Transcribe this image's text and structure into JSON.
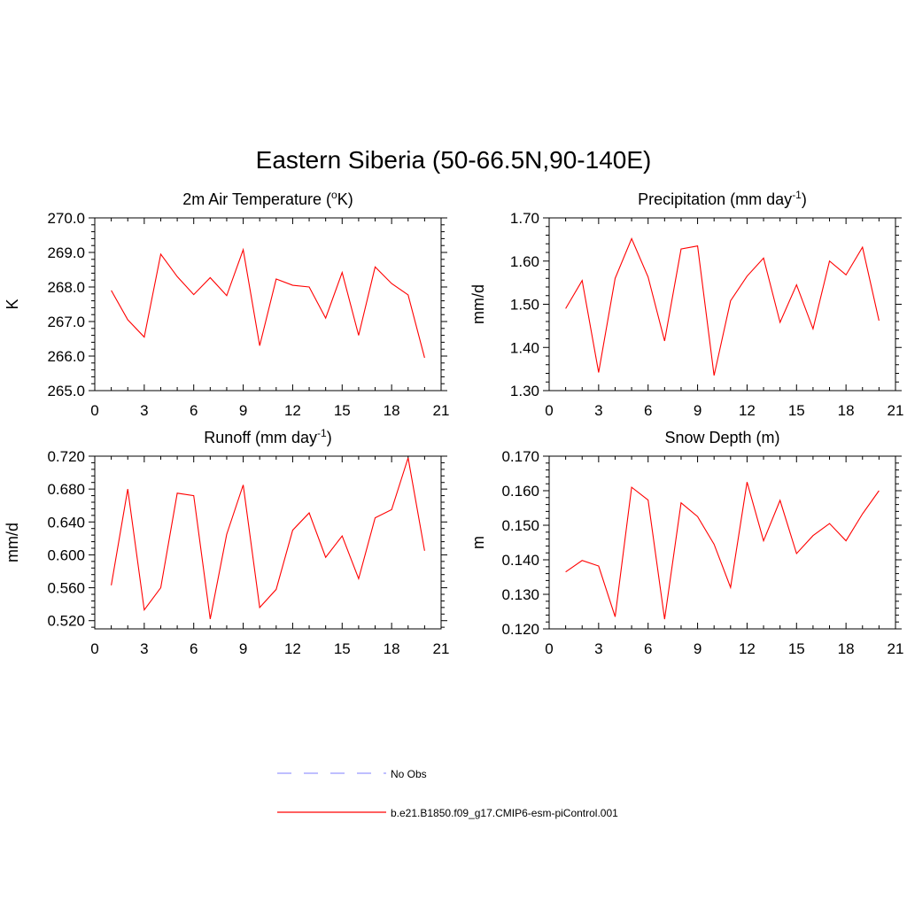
{
  "title": "Eastern Siberia (50-66.5N,90-140E)",
  "colors": {
    "model": "#ff0000",
    "obs": "#9999ff",
    "axis": "#000000"
  },
  "legend": {
    "entries": [
      {
        "label": "No Obs",
        "style": "dashed",
        "color": "#9999ff"
      },
      {
        "label": "b.e21.B1850.f09_g17.CMIP6-esm-piControl.001",
        "style": "solid",
        "color": "#ff0000"
      }
    ]
  },
  "chart_data": [
    {
      "type": "line",
      "title_main": "2m Air Temperature (",
      "title_sup": "o",
      "title_tail": "K)",
      "ylabel": "K",
      "xlim": [
        0,
        21
      ],
      "ylim": [
        265.0,
        270.0
      ],
      "xticks": [
        "0",
        "3",
        "6",
        "9",
        "12",
        "15",
        "18",
        "21"
      ],
      "yticks": [
        "265.0",
        "266.0",
        "267.0",
        "268.0",
        "269.0",
        "270.0"
      ],
      "x": [
        1,
        2,
        3,
        4,
        5,
        6,
        7,
        8,
        9,
        10,
        11,
        12,
        13,
        14,
        15,
        16,
        17,
        18,
        19,
        20
      ],
      "series": [
        {
          "values": [
            267.9,
            267.05,
            266.55,
            268.95,
            268.3,
            267.78,
            268.27,
            267.75,
            269.08,
            266.3,
            268.23,
            268.05,
            268.0,
            267.1,
            268.42,
            266.6,
            268.58,
            268.1,
            267.77,
            265.95
          ]
        }
      ],
      "grid": false
    },
    {
      "type": "line",
      "title_main": "Precipitation (mm day",
      "title_sup": "-1",
      "title_tail": ")",
      "ylabel": "mm/d",
      "xlim": [
        0,
        21
      ],
      "ylim": [
        1.3,
        1.7
      ],
      "xticks": [
        "0",
        "3",
        "6",
        "9",
        "12",
        "15",
        "18",
        "21"
      ],
      "yticks": [
        "1.30",
        "1.40",
        "1.50",
        "1.60",
        "1.70"
      ],
      "x": [
        1,
        2,
        3,
        4,
        5,
        6,
        7,
        8,
        9,
        10,
        11,
        12,
        13,
        14,
        15,
        16,
        17,
        18,
        19,
        20
      ],
      "series": [
        {
          "values": [
            1.49,
            1.555,
            1.342,
            1.56,
            1.652,
            1.563,
            1.415,
            1.628,
            1.635,
            1.335,
            1.508,
            1.565,
            1.607,
            1.458,
            1.545,
            1.443,
            1.6,
            1.568,
            1.632,
            1.462
          ]
        }
      ],
      "grid": false
    },
    {
      "type": "line",
      "title_main": "Runoff (mm day",
      "title_sup": "-1",
      "title_tail": ")",
      "ylabel": "mm/d",
      "xlim": [
        0,
        21
      ],
      "ylim": [
        0.51,
        0.72
      ],
      "xticks": [
        "0",
        "3",
        "6",
        "9",
        "12",
        "15",
        "18",
        "21"
      ],
      "yticks": [
        "0.520",
        "0.560",
        "0.600",
        "0.640",
        "0.680",
        "0.720"
      ],
      "x": [
        1,
        2,
        3,
        4,
        5,
        6,
        7,
        8,
        9,
        10,
        11,
        12,
        13,
        14,
        15,
        16,
        17,
        18,
        19,
        20
      ],
      "series": [
        {
          "values": [
            0.563,
            0.68,
            0.533,
            0.56,
            0.675,
            0.672,
            0.522,
            0.625,
            0.685,
            0.536,
            0.558,
            0.63,
            0.651,
            0.597,
            0.623,
            0.571,
            0.645,
            0.655,
            0.718,
            0.605
          ]
        }
      ],
      "grid": false
    },
    {
      "type": "line",
      "title_main": "Snow Depth (m)",
      "title_sup": "",
      "title_tail": "",
      "ylabel": "m",
      "xlim": [
        0,
        21
      ],
      "ylim": [
        0.12,
        0.17
      ],
      "xticks": [
        "0",
        "3",
        "6",
        "9",
        "12",
        "15",
        "18",
        "21"
      ],
      "yticks": [
        "0.120",
        "0.130",
        "0.140",
        "0.150",
        "0.160",
        "0.170"
      ],
      "x": [
        1,
        2,
        3,
        4,
        5,
        6,
        7,
        8,
        9,
        10,
        11,
        12,
        13,
        14,
        15,
        16,
        17,
        18,
        19,
        20
      ],
      "series": [
        {
          "values": [
            0.1365,
            0.1398,
            0.1382,
            0.1235,
            0.161,
            0.1573,
            0.1228,
            0.1565,
            0.1525,
            0.1445,
            0.132,
            0.1625,
            0.1455,
            0.1572,
            0.1418,
            0.147,
            0.1505,
            0.1455,
            0.1533,
            0.16
          ]
        }
      ],
      "grid": false
    }
  ]
}
